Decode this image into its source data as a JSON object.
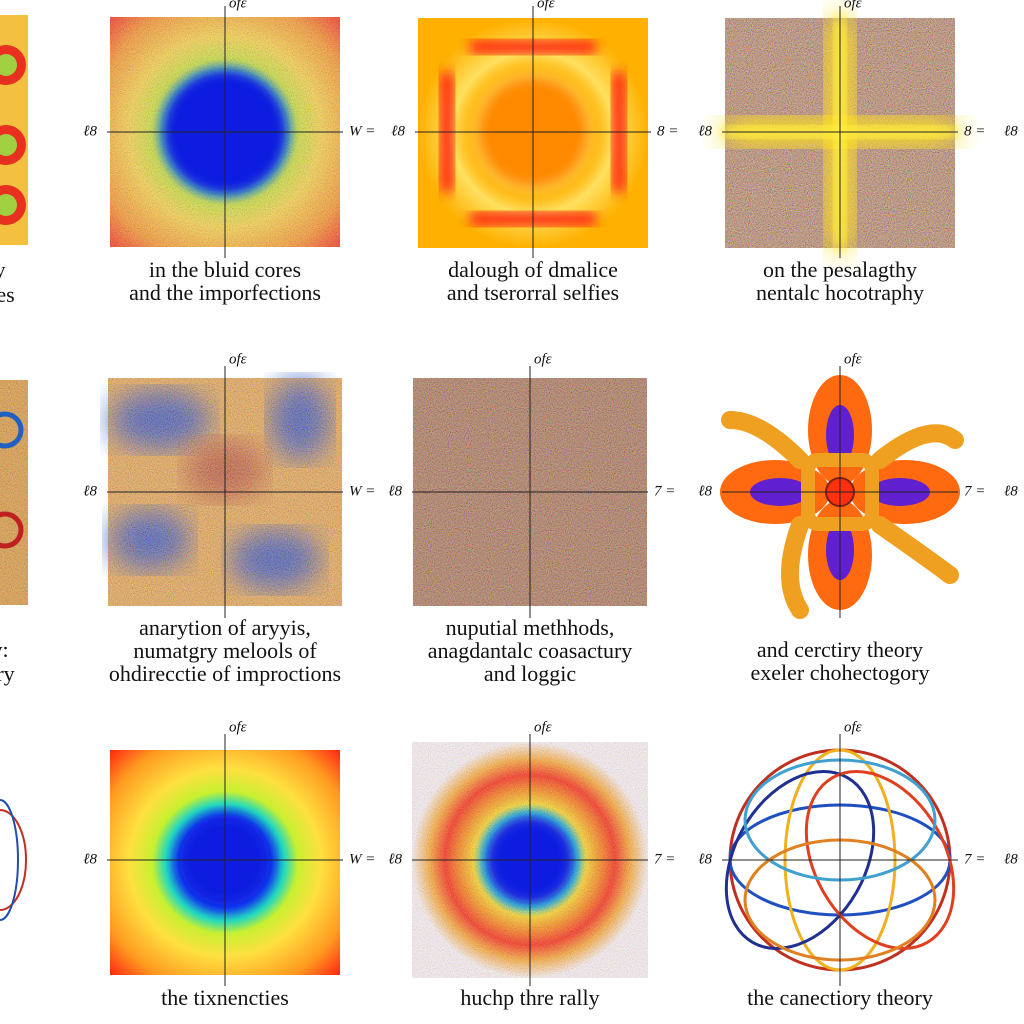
{
  "panels": [
    {
      "top": "ofε",
      "left": "ℓ8",
      "right": "W =",
      "caption": [
        "in the bluid cores",
        "and the imporfections"
      ]
    },
    {
      "top": "ofε",
      "left": "ℓ8",
      "right": "8 =",
      "caption": [
        "dalough of dmalice",
        "and tserorral selfies"
      ]
    },
    {
      "top": "ofε",
      "left": "ℓ8",
      "right": "8 =",
      "caption": [
        "on the pesalagthy",
        "nentalc hocotraphy"
      ]
    },
    {
      "top": "ofε",
      "left": "ℓ8",
      "right": "W =",
      "caption": [
        "anarytion of aryyis,",
        "numatgry melools of",
        "ohdirecctie of improctions"
      ]
    },
    {
      "top": "ofε",
      "left": "ℓ8",
      "right": "7 =",
      "caption": [
        "nuputial methhods,",
        "anagdantalc coasactury",
        "and loggic"
      ]
    },
    {
      "top": "ofε",
      "left": "ℓ8",
      "right": "7 =",
      "caption": [
        "and cerctiry theory",
        "exeler chohectogory"
      ]
    },
    {
      "top": "ofε",
      "left": "ℓ8",
      "right": "W =",
      "caption": [
        "the tixnencties"
      ]
    },
    {
      "top": "ofε",
      "left": "ℓ8",
      "right": "7 =",
      "caption": [
        "huchp thre rally"
      ]
    },
    {
      "top": "ofε",
      "left": "ℓ8",
      "right": "7 =",
      "caption": [
        "the canectiory theory"
      ]
    }
  ],
  "edge_fragments": {
    "left": [
      "y",
      "nes",
      "y:",
      "pry"
    ],
    "right": [
      "ℓ8",
      "ℓ8",
      "ℓ8"
    ]
  }
}
